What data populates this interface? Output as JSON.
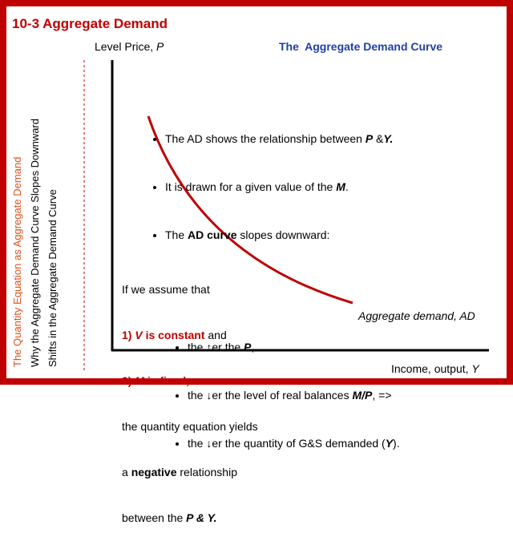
{
  "title": "10-3 Aggregate Demand",
  "sidebar": [
    "The Quantity Equation as Aggregate Demand",
    "Why the Aggregate Demand Curve Slopes Downward",
    "Shifts in the Aggregate Demand Curve"
  ],
  "y_axis_label": [
    "Level Price, ",
    "P"
  ],
  "x_axis_label": [
    "Income, output, ",
    "Y"
  ],
  "heading": "The  Aggregate Demand Curve",
  "bullets": [
    [
      "The AD shows the relationship between ",
      "P",
      " &",
      "Y."
    ],
    [
      "It is drawn for a given value of the ",
      "M",
      "."
    ],
    [
      "The ",
      "AD curve",
      " slopes downward:"
    ]
  ],
  "sub_bullets": [
    [
      "the ↑er the ",
      "P",
      ","
    ],
    [
      "the ↓er the level of real balances ",
      "M/P",
      ", =>"
    ],
    [
      "the ↓er the quantity of G&S demanded (",
      "Y",
      ")."
    ]
  ],
  "note": [
    [
      "If we assume that"
    ],
    [
      "1) ",
      "V",
      " is constant",
      " and"
    ],
    [
      "2) ",
      "M",
      " is fixed,=>"
    ],
    [
      "the quantity equation yields"
    ],
    [
      "a ",
      "negative",
      " relationship"
    ],
    [
      "between the ",
      "P & Y."
    ]
  ],
  "curve_label": "Aggregate demand, AD"
}
